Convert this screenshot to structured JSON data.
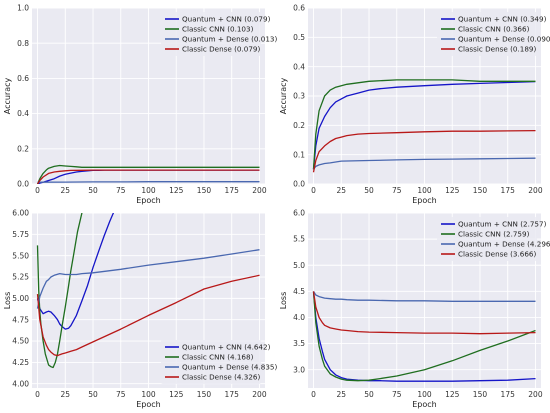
{
  "chart_data": [
    {
      "type": "line",
      "xlabel": "Epoch",
      "ylabel": "Accuracy",
      "xlim": [
        -5,
        205
      ],
      "ylim": [
        0.0,
        1.0
      ],
      "xticks": [
        0,
        25,
        50,
        75,
        100,
        125,
        150,
        175,
        200
      ],
      "yticks": [
        0.0,
        0.2,
        0.4,
        0.6,
        0.8,
        1.0
      ],
      "grid": true,
      "legend_position": "top-right",
      "series": [
        {
          "name": "Quantum + CNN (0.079)",
          "color": "#1515c8",
          "x": [
            0,
            2,
            5,
            10,
            15,
            20,
            25,
            30,
            35,
            40,
            45,
            50,
            55,
            60,
            75,
            100,
            125,
            150,
            175,
            200
          ],
          "y": [
            0.0,
            0.005,
            0.01,
            0.02,
            0.03,
            0.045,
            0.055,
            0.062,
            0.068,
            0.072,
            0.075,
            0.077,
            0.078,
            0.079,
            0.079,
            0.079,
            0.079,
            0.079,
            0.079,
            0.079
          ]
        },
        {
          "name": "Classic CNN (0.103)",
          "color": "#1f6e1f",
          "x": [
            0,
            2,
            5,
            8,
            10,
            15,
            20,
            25,
            30,
            35,
            40,
            50,
            75,
            100,
            125,
            150,
            175,
            200
          ],
          "y": [
            0.0,
            0.03,
            0.06,
            0.08,
            0.09,
            0.1,
            0.105,
            0.102,
            0.1,
            0.098,
            0.095,
            0.095,
            0.095,
            0.095,
            0.095,
            0.095,
            0.095,
            0.095
          ]
        },
        {
          "name": "Quantum + Dense (0.013)",
          "color": "#4a68b0",
          "x": [
            0,
            25,
            50,
            75,
            100,
            125,
            150,
            175,
            200
          ],
          "y": [
            0.01,
            0.011,
            0.012,
            0.012,
            0.013,
            0.013,
            0.013,
            0.013,
            0.013
          ]
        },
        {
          "name": "Classic Dense (0.079)",
          "color": "#b81818",
          "x": [
            0,
            2,
            5,
            10,
            15,
            20,
            25,
            30,
            40,
            50,
            75,
            100,
            125,
            150,
            175,
            200
          ],
          "y": [
            0.0,
            0.02,
            0.04,
            0.06,
            0.068,
            0.072,
            0.075,
            0.077,
            0.078,
            0.079,
            0.079,
            0.079,
            0.079,
            0.079,
            0.079,
            0.079
          ]
        }
      ]
    },
    {
      "type": "line",
      "xlabel": "Epoch",
      "ylabel": "Accuracy",
      "xlim": [
        -5,
        205
      ],
      "ylim": [
        0.0,
        0.6
      ],
      "xticks": [
        0,
        25,
        50,
        75,
        100,
        125,
        150,
        175,
        200
      ],
      "yticks": [
        0.0,
        0.1,
        0.2,
        0.3,
        0.4,
        0.5,
        0.6
      ],
      "grid": true,
      "legend_position": "top-right",
      "series": [
        {
          "name": "Quantum + CNN (0.349)",
          "color": "#1515c8",
          "x": [
            0,
            2,
            5,
            10,
            15,
            20,
            25,
            30,
            40,
            50,
            60,
            75,
            100,
            125,
            150,
            175,
            200
          ],
          "y": [
            0.05,
            0.13,
            0.19,
            0.23,
            0.26,
            0.28,
            0.29,
            0.3,
            0.31,
            0.32,
            0.325,
            0.33,
            0.335,
            0.34,
            0.343,
            0.346,
            0.349
          ]
        },
        {
          "name": "Classic CNN (0.366)",
          "color": "#1f6e1f",
          "x": [
            0,
            2,
            5,
            10,
            15,
            20,
            25,
            30,
            40,
            50,
            75,
            100,
            125,
            150,
            175,
            200
          ],
          "y": [
            0.05,
            0.17,
            0.25,
            0.3,
            0.32,
            0.33,
            0.335,
            0.34,
            0.345,
            0.35,
            0.355,
            0.355,
            0.355,
            0.35,
            0.35,
            0.35
          ]
        },
        {
          "name": "Quantum + Dense (0.090)",
          "color": "#4a68b0",
          "x": [
            0,
            2,
            5,
            10,
            15,
            20,
            25,
            50,
            75,
            100,
            125,
            150,
            175,
            200
          ],
          "y": [
            0.05,
            0.06,
            0.065,
            0.07,
            0.072,
            0.075,
            0.078,
            0.08,
            0.082,
            0.084,
            0.085,
            0.086,
            0.087,
            0.088
          ]
        },
        {
          "name": "Classic Dense (0.189)",
          "color": "#b81818",
          "x": [
            0,
            2,
            5,
            10,
            15,
            20,
            25,
            30,
            40,
            50,
            75,
            100,
            125,
            150,
            175,
            200
          ],
          "y": [
            0.04,
            0.08,
            0.11,
            0.13,
            0.145,
            0.155,
            0.16,
            0.165,
            0.17,
            0.172,
            0.175,
            0.178,
            0.18,
            0.18,
            0.181,
            0.182
          ]
        }
      ]
    },
    {
      "type": "line",
      "xlabel": "Epoch",
      "ylabel": "Loss",
      "xlim": [
        -5,
        205
      ],
      "ylim": [
        3.95,
        6.0
      ],
      "xticks": [
        0,
        25,
        50,
        75,
        100,
        125,
        150,
        175,
        200
      ],
      "yticks": [
        4.0,
        4.25,
        4.5,
        4.75,
        5.0,
        5.25,
        5.5,
        5.75,
        6.0
      ],
      "grid": true,
      "legend_position": "bottom-right",
      "series": [
        {
          "name": "Quantum + CNN (4.642)",
          "color": "#1515c8",
          "x": [
            0,
            2,
            5,
            8,
            10,
            12,
            15,
            18,
            20,
            22,
            25,
            28,
            30,
            35,
            40,
            45,
            50,
            55,
            60,
            65,
            70
          ],
          "y": [
            5.0,
            4.88,
            4.82,
            4.84,
            4.85,
            4.84,
            4.8,
            4.75,
            4.7,
            4.67,
            4.64,
            4.65,
            4.68,
            4.8,
            4.97,
            5.15,
            5.36,
            5.55,
            5.73,
            5.9,
            6.05
          ]
        },
        {
          "name": "Classic CNN (4.168)",
          "color": "#1f6e1f",
          "x": [
            0,
            1,
            2,
            3,
            5,
            7,
            10,
            12,
            14,
            16,
            18,
            20,
            22,
            25,
            28,
            30,
            33,
            36,
            40,
            43
          ],
          "y": [
            5.62,
            5.1,
            4.85,
            4.7,
            4.5,
            4.35,
            4.22,
            4.2,
            4.19,
            4.25,
            4.35,
            4.5,
            4.67,
            4.9,
            5.15,
            5.32,
            5.55,
            5.78,
            6.0,
            6.1
          ]
        },
        {
          "name": "Quantum + Dense (4.835)",
          "color": "#4a68b0",
          "x": [
            0,
            2,
            5,
            8,
            10,
            12,
            15,
            20,
            25,
            30,
            35,
            40,
            50,
            75,
            100,
            125,
            150,
            175,
            200
          ],
          "y": [
            4.88,
            5.02,
            5.12,
            5.2,
            5.22,
            5.25,
            5.27,
            5.29,
            5.28,
            5.28,
            5.28,
            5.29,
            5.3,
            5.34,
            5.39,
            5.43,
            5.47,
            5.52,
            5.57
          ]
        },
        {
          "name": "Classic Dense (4.326)",
          "color": "#b81818",
          "x": [
            0,
            2,
            5,
            8,
            10,
            12,
            15,
            18,
            20,
            22,
            25,
            30,
            35,
            40,
            50,
            75,
            100,
            125,
            150,
            175,
            200
          ],
          "y": [
            5.05,
            4.75,
            4.55,
            4.45,
            4.4,
            4.37,
            4.34,
            4.33,
            4.34,
            4.35,
            4.36,
            4.38,
            4.4,
            4.43,
            4.49,
            4.64,
            4.8,
            4.95,
            5.11,
            5.2,
            5.27
          ]
        }
      ]
    },
    {
      "type": "line",
      "xlabel": "Epoch",
      "ylabel": "Loss",
      "xlim": [
        -5,
        205
      ],
      "ylim": [
        2.65,
        6.0
      ],
      "xticks": [
        0,
        25,
        50,
        75,
        100,
        125,
        150,
        175,
        200
      ],
      "yticks": [
        3.0,
        3.5,
        4.0,
        4.5,
        5.0,
        5.5,
        6.0
      ],
      "grid": true,
      "legend_position": "top-right",
      "series": [
        {
          "name": "Quantum + CNN (2.757)",
          "color": "#1515c8",
          "x": [
            0,
            2,
            5,
            8,
            10,
            15,
            20,
            25,
            30,
            40,
            50,
            60,
            75,
            100,
            125,
            150,
            175,
            200
          ],
          "y": [
            4.5,
            4.0,
            3.6,
            3.35,
            3.2,
            3.0,
            2.9,
            2.85,
            2.82,
            2.8,
            2.79,
            2.79,
            2.78,
            2.78,
            2.78,
            2.79,
            2.8,
            2.83
          ]
        },
        {
          "name": "Classic CNN (2.759)",
          "color": "#1f6e1f",
          "x": [
            0,
            2,
            5,
            8,
            10,
            15,
            20,
            25,
            30,
            40,
            50,
            60,
            75,
            100,
            125,
            150,
            175,
            200
          ],
          "y": [
            4.5,
            3.9,
            3.45,
            3.2,
            3.07,
            2.92,
            2.86,
            2.82,
            2.8,
            2.79,
            2.8,
            2.83,
            2.88,
            3.0,
            3.17,
            3.37,
            3.55,
            3.75
          ]
        },
        {
          "name": "Quantum + Dense (4.296)",
          "color": "#4a68b0",
          "x": [
            0,
            2,
            5,
            10,
            15,
            20,
            25,
            30,
            40,
            50,
            75,
            100,
            125,
            150,
            175,
            200
          ],
          "y": [
            4.5,
            4.43,
            4.4,
            4.37,
            4.36,
            4.35,
            4.35,
            4.34,
            4.33,
            4.33,
            4.32,
            4.32,
            4.31,
            4.31,
            4.31,
            4.31
          ]
        },
        {
          "name": "Classic Dense (3.666)",
          "color": "#b81818",
          "x": [
            0,
            2,
            5,
            8,
            10,
            15,
            20,
            25,
            30,
            40,
            50,
            75,
            100,
            125,
            150,
            175,
            200
          ],
          "y": [
            4.5,
            4.2,
            4.0,
            3.9,
            3.85,
            3.8,
            3.78,
            3.76,
            3.75,
            3.73,
            3.72,
            3.71,
            3.7,
            3.7,
            3.69,
            3.7,
            3.71
          ]
        }
      ]
    }
  ]
}
